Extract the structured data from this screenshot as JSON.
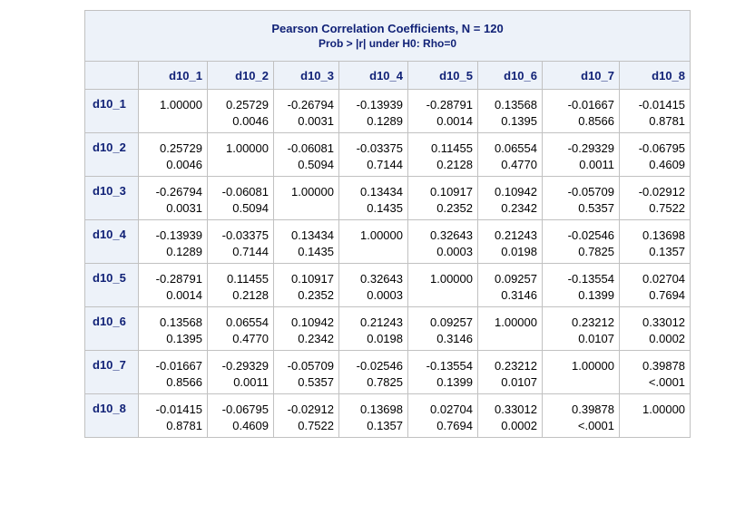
{
  "title": {
    "line1": "Pearson Correlation Coefficients, N = 120",
    "line2": "Prob > |r| under H0: Rho=0"
  },
  "columns": [
    "d10_1",
    "d10_2",
    "d10_3",
    "d10_4",
    "d10_5",
    "d10_6",
    "d10_7",
    "d10_8"
  ],
  "rows": [
    {
      "label": "d10_1",
      "cells": [
        {
          "r": "1.00000",
          "p": ""
        },
        {
          "r": "0.25729",
          "p": "0.0046"
        },
        {
          "r": "-0.26794",
          "p": "0.0031"
        },
        {
          "r": "-0.13939",
          "p": "0.1289"
        },
        {
          "r": "-0.28791",
          "p": "0.0014"
        },
        {
          "r": "0.13568",
          "p": "0.1395"
        },
        {
          "r": "-0.01667",
          "p": "0.8566"
        },
        {
          "r": "-0.01415",
          "p": "0.8781"
        }
      ]
    },
    {
      "label": "d10_2",
      "cells": [
        {
          "r": "0.25729",
          "p": "0.0046"
        },
        {
          "r": "1.00000",
          "p": ""
        },
        {
          "r": "-0.06081",
          "p": "0.5094"
        },
        {
          "r": "-0.03375",
          "p": "0.7144"
        },
        {
          "r": "0.11455",
          "p": "0.2128"
        },
        {
          "r": "0.06554",
          "p": "0.4770"
        },
        {
          "r": "-0.29329",
          "p": "0.0011"
        },
        {
          "r": "-0.06795",
          "p": "0.4609"
        }
      ]
    },
    {
      "label": "d10_3",
      "cells": [
        {
          "r": "-0.26794",
          "p": "0.0031"
        },
        {
          "r": "-0.06081",
          "p": "0.5094"
        },
        {
          "r": "1.00000",
          "p": ""
        },
        {
          "r": "0.13434",
          "p": "0.1435"
        },
        {
          "r": "0.10917",
          "p": "0.2352"
        },
        {
          "r": "0.10942",
          "p": "0.2342"
        },
        {
          "r": "-0.05709",
          "p": "0.5357"
        },
        {
          "r": "-0.02912",
          "p": "0.7522"
        }
      ]
    },
    {
      "label": "d10_4",
      "cells": [
        {
          "r": "-0.13939",
          "p": "0.1289"
        },
        {
          "r": "-0.03375",
          "p": "0.7144"
        },
        {
          "r": "0.13434",
          "p": "0.1435"
        },
        {
          "r": "1.00000",
          "p": ""
        },
        {
          "r": "0.32643",
          "p": "0.0003"
        },
        {
          "r": "0.21243",
          "p": "0.0198"
        },
        {
          "r": "-0.02546",
          "p": "0.7825"
        },
        {
          "r": "0.13698",
          "p": "0.1357"
        }
      ]
    },
    {
      "label": "d10_5",
      "cells": [
        {
          "r": "-0.28791",
          "p": "0.0014"
        },
        {
          "r": "0.11455",
          "p": "0.2128"
        },
        {
          "r": "0.10917",
          "p": "0.2352"
        },
        {
          "r": "0.32643",
          "p": "0.0003"
        },
        {
          "r": "1.00000",
          "p": ""
        },
        {
          "r": "0.09257",
          "p": "0.3146"
        },
        {
          "r": "-0.13554",
          "p": "0.1399"
        },
        {
          "r": "0.02704",
          "p": "0.7694"
        }
      ]
    },
    {
      "label": "d10_6",
      "cells": [
        {
          "r": "0.13568",
          "p": "0.1395"
        },
        {
          "r": "0.06554",
          "p": "0.4770"
        },
        {
          "r": "0.10942",
          "p": "0.2342"
        },
        {
          "r": "0.21243",
          "p": "0.0198"
        },
        {
          "r": "0.09257",
          "p": "0.3146"
        },
        {
          "r": "1.00000",
          "p": ""
        },
        {
          "r": "0.23212",
          "p": "0.0107"
        },
        {
          "r": "0.33012",
          "p": "0.0002"
        }
      ]
    },
    {
      "label": "d10_7",
      "cells": [
        {
          "r": "-0.01667",
          "p": "0.8566"
        },
        {
          "r": "-0.29329",
          "p": "0.0011"
        },
        {
          "r": "-0.05709",
          "p": "0.5357"
        },
        {
          "r": "-0.02546",
          "p": "0.7825"
        },
        {
          "r": "-0.13554",
          "p": "0.1399"
        },
        {
          "r": "0.23212",
          "p": "0.0107"
        },
        {
          "r": "1.00000",
          "p": ""
        },
        {
          "r": "0.39878",
          "p": "<.0001"
        }
      ]
    },
    {
      "label": "d10_8",
      "cells": [
        {
          "r": "-0.01415",
          "p": "0.8781"
        },
        {
          "r": "-0.06795",
          "p": "0.4609"
        },
        {
          "r": "-0.02912",
          "p": "0.7522"
        },
        {
          "r": "0.13698",
          "p": "0.1357"
        },
        {
          "r": "0.02704",
          "p": "0.7694"
        },
        {
          "r": "0.33012",
          "p": "0.0002"
        },
        {
          "r": "0.39878",
          "p": "<.0001"
        },
        {
          "r": "1.00000",
          "p": ""
        }
      ]
    }
  ],
  "colors": {
    "header_background": "#edf2f9",
    "header_text": "#112277",
    "grid_border": "#c1c1c1"
  }
}
